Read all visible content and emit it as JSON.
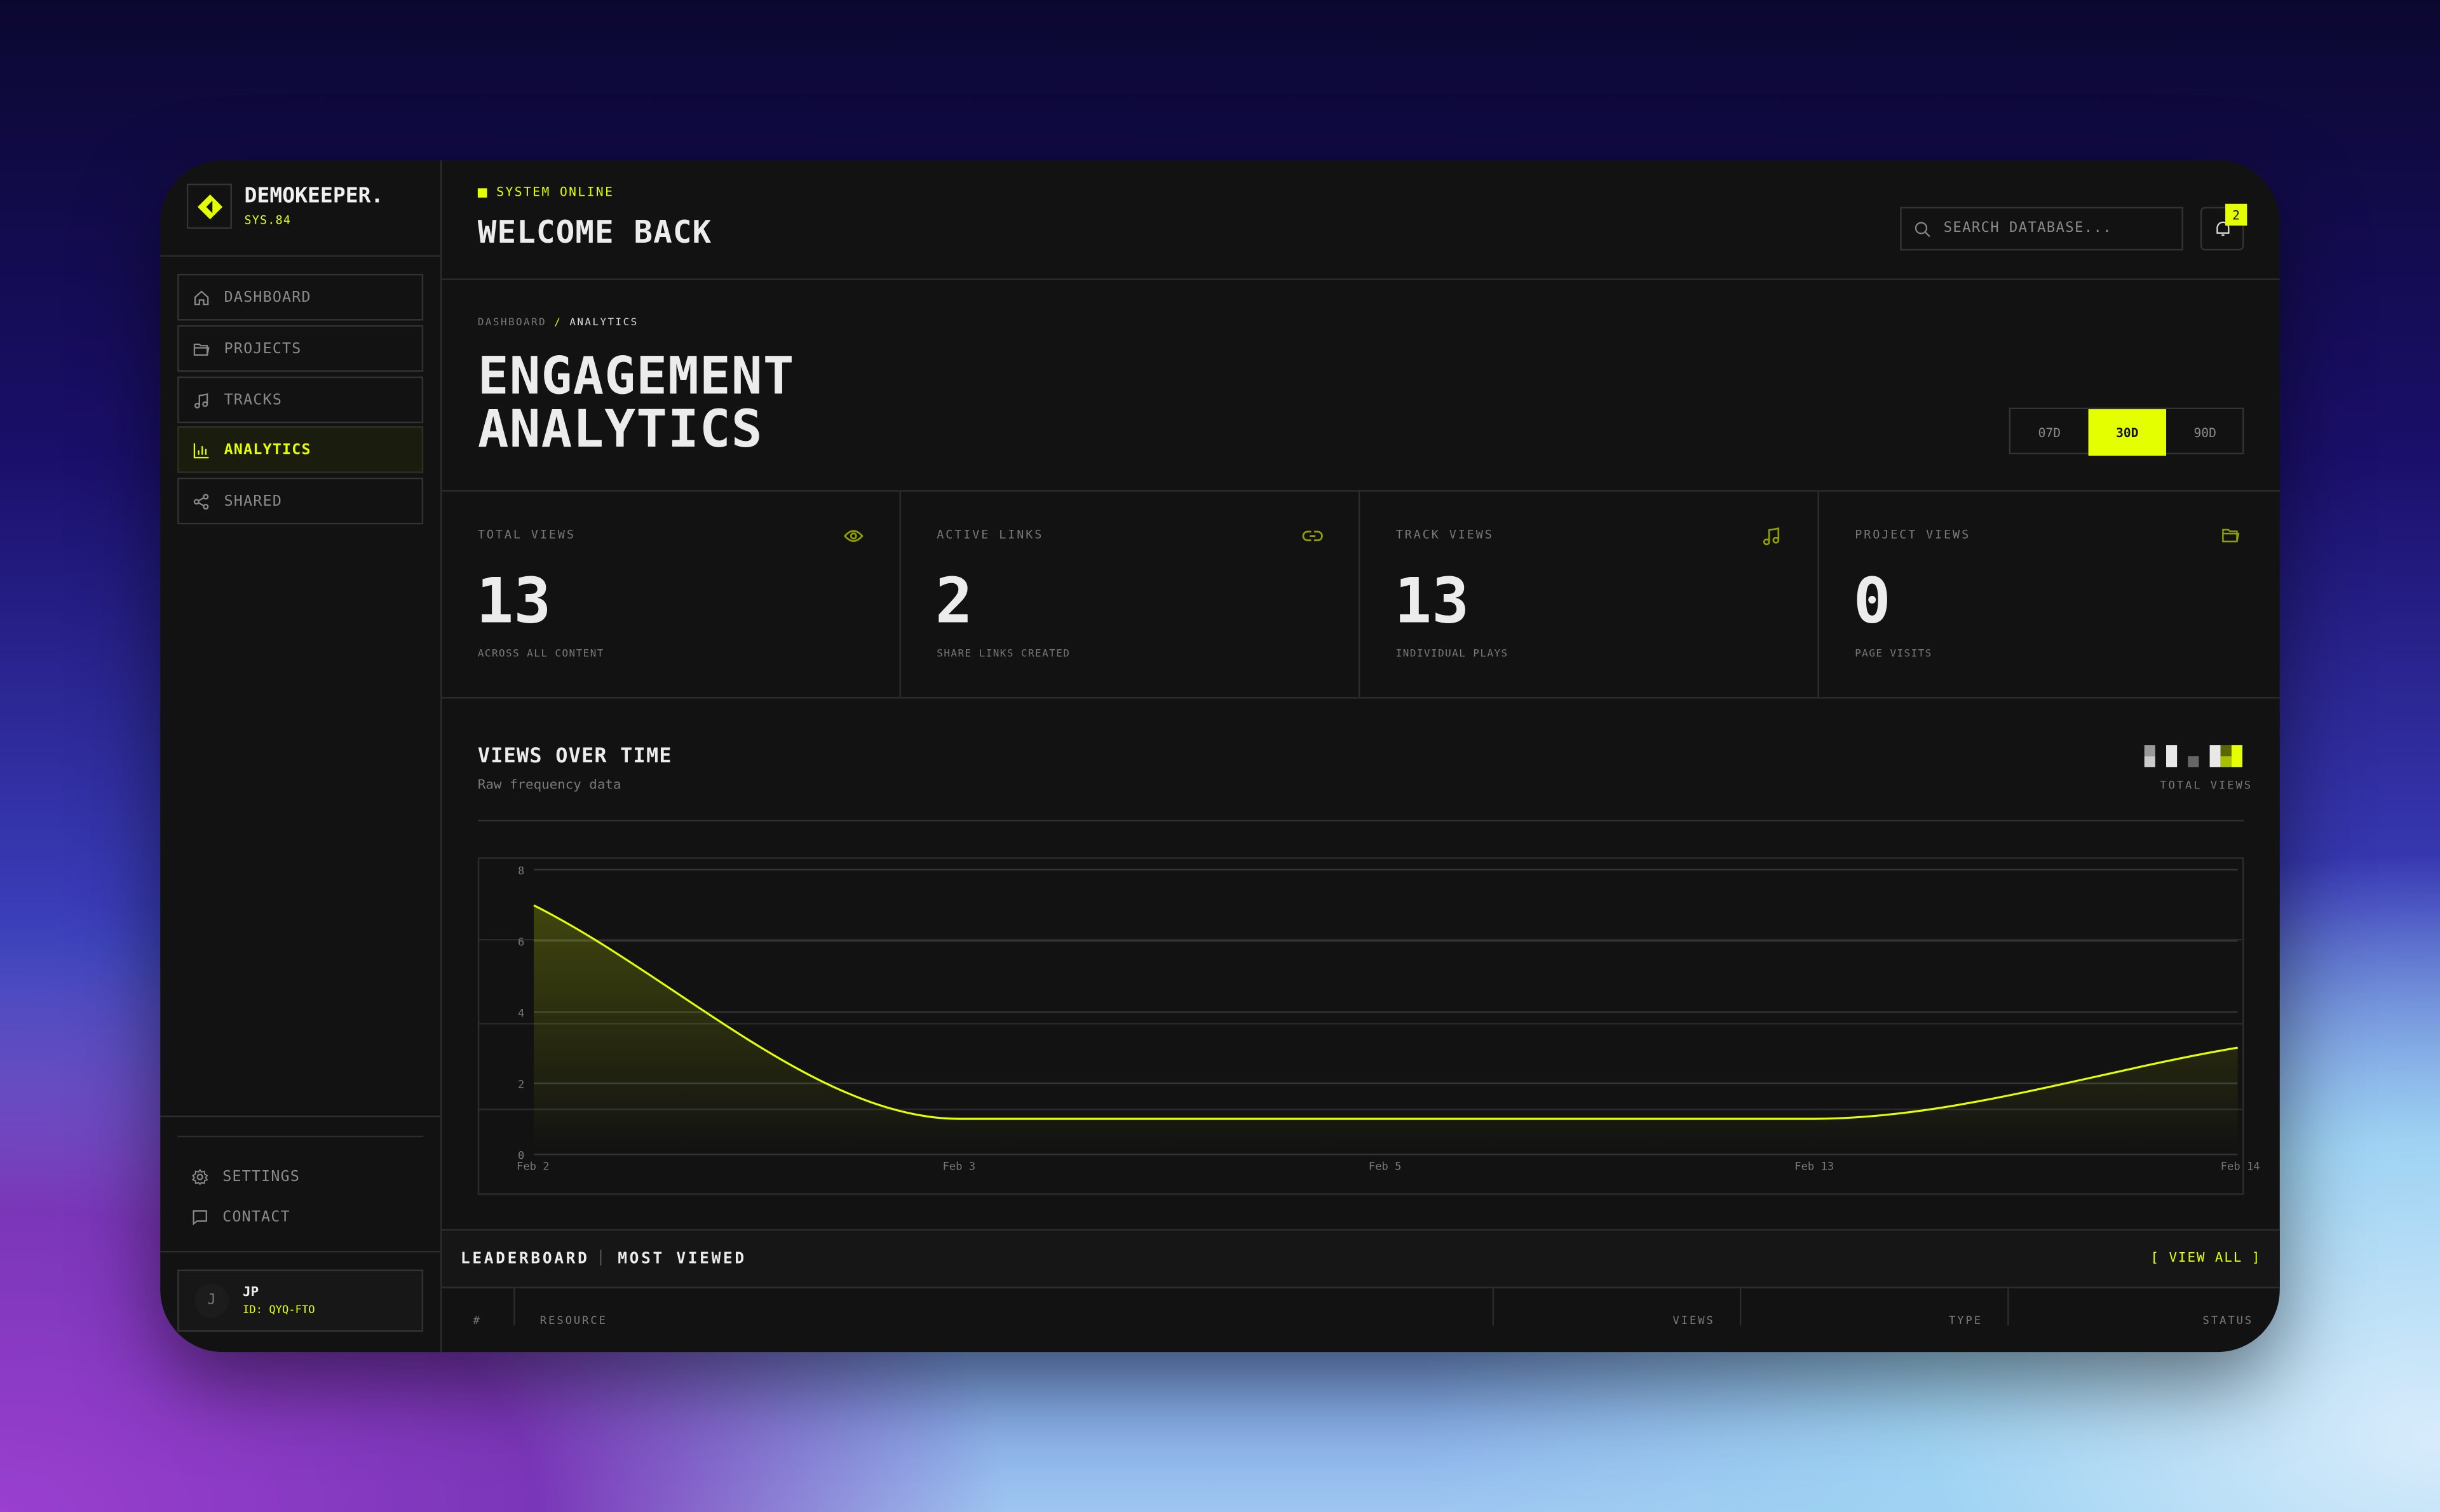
{
  "brand": {
    "name": "DEMOKEEPER.",
    "version": "SYS.84",
    "accent": "#e3ff00"
  },
  "sidebar": {
    "items": [
      {
        "label": "DASHBOARD",
        "icon": "home-icon",
        "active": false
      },
      {
        "label": "PROJECTS",
        "icon": "folder-icon",
        "active": false
      },
      {
        "label": "TRACKS",
        "icon": "music-note-icon",
        "active": false
      },
      {
        "label": "ANALYTICS",
        "icon": "bar-chart-icon",
        "active": true
      },
      {
        "label": "SHARED",
        "icon": "share-icon",
        "active": false
      }
    ],
    "footer": [
      {
        "label": "SETTINGS",
        "icon": "gear-icon"
      },
      {
        "label": "CONTACT",
        "icon": "chat-icon"
      }
    ],
    "user": {
      "initial": "J",
      "name": "JP",
      "id": "ID: QYQ-FTO"
    }
  },
  "header": {
    "status": "SYSTEM ONLINE",
    "title": "WELCOME BACK",
    "search_placeholder": "SEARCH DATABASE...",
    "notifications": "2"
  },
  "page": {
    "breadcrumb": [
      "DASHBOARD",
      "/",
      "ANALYTICS"
    ],
    "title_line1": "ENGAGEMENT",
    "title_line2": "ANALYTICS",
    "ranges": [
      {
        "label": "07D",
        "active": false
      },
      {
        "label": "30D",
        "active": true
      },
      {
        "label": "90D",
        "active": false
      }
    ]
  },
  "stats": [
    {
      "label": "TOTAL VIEWS",
      "value": "13",
      "sub": "ACROSS ALL CONTENT",
      "icon": "eye-icon"
    },
    {
      "label": "ACTIVE LINKS",
      "value": "2",
      "sub": "SHARE LINKS CREATED",
      "icon": "link-icon"
    },
    {
      "label": "TRACK VIEWS",
      "value": "13",
      "sub": "INDIVIDUAL PLAYS",
      "icon": "music-note-icon"
    },
    {
      "label": "PROJECT VIEWS",
      "value": "0",
      "sub": "PAGE VISITS",
      "icon": "folder-icon"
    }
  ],
  "chart_section": {
    "title": "VIEWS OVER TIME",
    "subtitle": "Raw frequency data",
    "legend": "TOTAL VIEWS"
  },
  "chart_data": {
    "type": "area",
    "x": [
      "Feb 2",
      "Feb 3",
      "Feb 5",
      "Feb 13",
      "Feb 14"
    ],
    "series": [
      {
        "values": [
          7,
          1,
          1,
          1,
          3
        ]
      }
    ],
    "ylim": [
      0,
      8
    ],
    "yticks": [
      0,
      2,
      4,
      6,
      8
    ],
    "grid": true,
    "color": "#e3ff00"
  },
  "leaderboard": {
    "title": "LEADERBOARD",
    "sep": "|",
    "subtitle": "MOST VIEWED",
    "view_all": "[ VIEW ALL ]",
    "columns": [
      "#",
      "RESOURCE",
      "VIEWS",
      "TYPE",
      "STATUS"
    ]
  }
}
